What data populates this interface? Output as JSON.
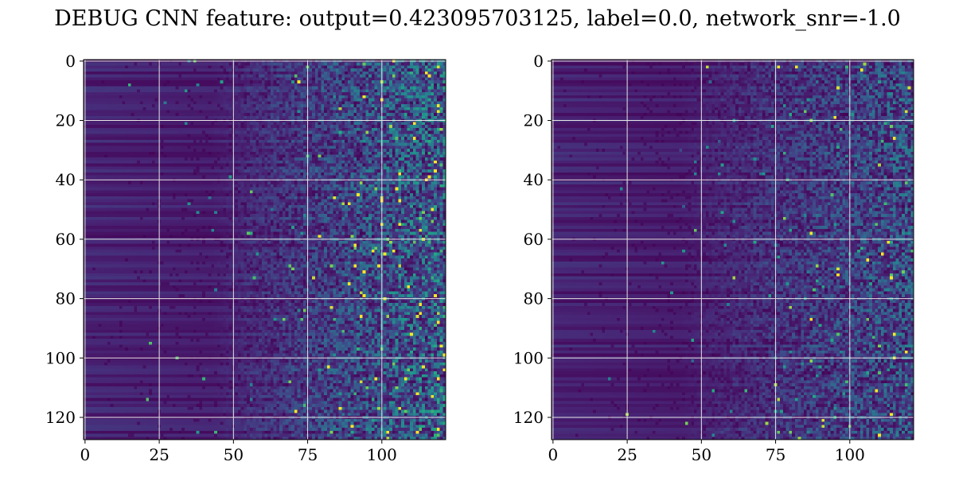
{
  "title": "DEBUG CNN feature: output=0.423095703125, label=0.0, network_snr=-1.0",
  "chart_data": [
    {
      "type": "heatmap",
      "panel": "left",
      "rows": 128,
      "cols": 122,
      "x_ticks": [
        0,
        25,
        50,
        75,
        100
      ],
      "y_ticks": [
        0,
        20,
        40,
        60,
        80,
        100,
        120
      ],
      "xlim": [
        -0.5,
        121.5
      ],
      "ylim": [
        127.5,
        -0.5
      ],
      "grid": true,
      "colormap": "viridis",
      "pattern": "low uniform values on the left, increasing speckled noise toward the right",
      "intensity": 1.0,
      "seed": 7
    },
    {
      "type": "heatmap",
      "panel": "right",
      "rows": 128,
      "cols": 122,
      "x_ticks": [
        0,
        25,
        50,
        75,
        100
      ],
      "y_ticks": [
        0,
        20,
        40,
        60,
        80,
        100,
        120
      ],
      "xlim": [
        -0.5,
        121.5
      ],
      "ylim": [
        127.5,
        -0.5
      ],
      "grid": true,
      "colormap": "viridis",
      "pattern": "low uniform values on the left, increasing speckled noise toward the right",
      "intensity": 0.75,
      "seed": 19
    }
  ],
  "colors": {
    "grid": "#e6e6e6",
    "frame": "#000000",
    "viridis_low": "#440154",
    "viridis_mid": "#21918c",
    "viridis_high": "#fde725"
  }
}
